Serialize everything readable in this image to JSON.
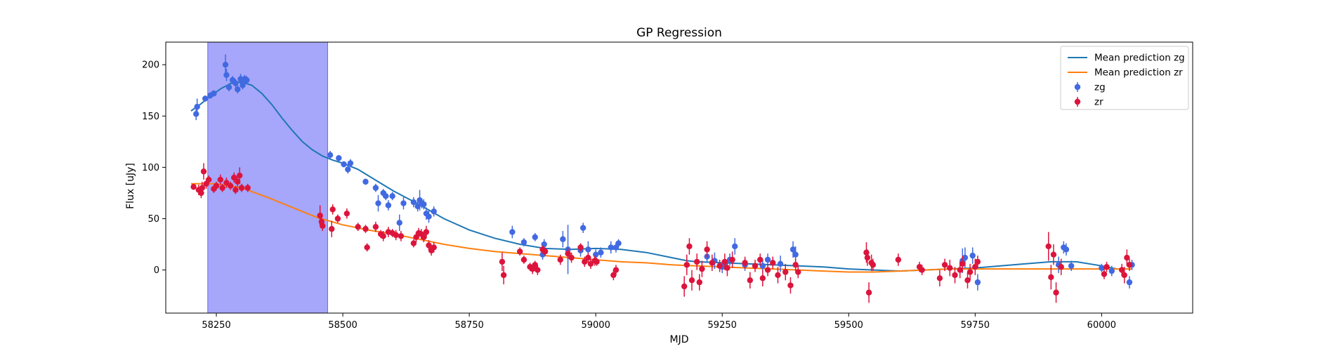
{
  "chart_data": {
    "type": "scatter",
    "title": "GP Regression",
    "xlabel": "MJD",
    "ylabel": "Flux [uJy]",
    "xlim": [
      58150,
      60180
    ],
    "ylim": [
      -42,
      222
    ],
    "xticks": [
      58250,
      58500,
      58750,
      59000,
      59250,
      59500,
      59750,
      60000
    ],
    "yticks": [
      0,
      50,
      100,
      150,
      200
    ],
    "grid": false,
    "legend_position": "top-right",
    "highlight_region": {
      "x_start": 58233,
      "x_end": 58470,
      "color": "#a6a6fa"
    },
    "lines": [
      {
        "name": "Mean prediction zg",
        "color": "#1f77b4",
        "x": [
          58200,
          58220,
          58240,
          58260,
          58280,
          58300,
          58320,
          58340,
          58360,
          58380,
          58400,
          58420,
          58440,
          58460,
          58480,
          58500,
          58530,
          58560,
          58600,
          58650,
          58700,
          58750,
          58800,
          58850,
          58900,
          58950,
          59000,
          59050,
          59100,
          59150,
          59180,
          59200,
          59250,
          59300,
          59350,
          59400,
          59450,
          59500,
          59550,
          59600,
          59650,
          59700,
          59750,
          59800,
          59850,
          59900,
          59950,
          60000,
          60030
        ],
        "y": [
          155,
          162,
          170,
          177,
          182,
          183,
          180,
          172,
          161,
          148,
          136,
          125,
          117,
          111,
          107,
          104,
          98,
          89,
          77,
          64,
          50,
          39,
          31,
          25,
          21,
          20,
          21,
          20,
          17,
          12,
          9,
          8,
          7,
          6,
          5,
          4,
          3,
          1,
          0,
          -1,
          0,
          1,
          2,
          4,
          6,
          8,
          8,
          4,
          1
        ]
      },
      {
        "name": "Mean prediction zr",
        "color": "#ff7f0e",
        "x": [
          58200,
          58250,
          58300,
          58350,
          58400,
          58450,
          58500,
          58550,
          58600,
          58650,
          58700,
          58750,
          58800,
          58850,
          58900,
          58950,
          59000,
          59050,
          59100,
          59150,
          59200,
          59250,
          59300,
          59350,
          59400,
          59450,
          59500,
          59550,
          59600,
          59650,
          59700,
          59750,
          59800,
          59850,
          59900,
          59950,
          60000,
          60060
        ],
        "y": [
          84,
          84,
          80,
          71,
          61,
          51,
          44,
          39,
          35,
          30,
          25,
          21,
          18,
          16,
          14,
          12,
          10,
          8,
          7,
          5,
          4,
          3,
          2,
          1,
          0,
          -1,
          -2,
          -2,
          -1,
          0,
          1,
          1,
          1,
          1,
          1,
          1,
          1,
          1
        ]
      }
    ],
    "series": [
      {
        "name": "zg",
        "color": "#4169e1",
        "x": [
          58210,
          58212,
          58228,
          58238,
          58245,
          58268,
          58270,
          58275,
          58282,
          58288,
          58292,
          58298,
          58302,
          58306,
          58310,
          58475,
          58492,
          58502,
          58510,
          58515,
          58545,
          58565,
          58570,
          58580,
          58585,
          58590,
          58598,
          58612,
          58620,
          58640,
          58648,
          58652,
          58656,
          58660,
          58665,
          58670,
          58680,
          58835,
          58858,
          58880,
          58895,
          58898,
          58935,
          58945,
          58970,
          58975,
          58985,
          59000,
          59010,
          59030,
          59040,
          59045,
          59220,
          59235,
          59250,
          59255,
          59265,
          59275,
          59295,
          59330,
          59340,
          59365,
          59390,
          59395,
          59725,
          59730,
          59745,
          59755,
          59915,
          59925,
          59930,
          59940,
          60000,
          60020,
          60055,
          60060
        ],
        "y": [
          152,
          159,
          167,
          170,
          172,
          200,
          190,
          178,
          185,
          182,
          176,
          186,
          180,
          186,
          185,
          112,
          109,
          103,
          98,
          104,
          86,
          80,
          65,
          75,
          72,
          63,
          72,
          46,
          65,
          66,
          62,
          68,
          65,
          64,
          55,
          52,
          57,
          37,
          27,
          32,
          15,
          25,
          30,
          20,
          19,
          41,
          20,
          15,
          17,
          22,
          22,
          26,
          13,
          9,
          3,
          6,
          10,
          23,
          5,
          4,
          10,
          6,
          20,
          15,
          9,
          12,
          14,
          -12,
          5,
          22,
          20,
          4,
          2,
          -1,
          -12,
          5
        ],
        "err": [
          6,
          8,
          3,
          3,
          3,
          10,
          6,
          4,
          4,
          4,
          4,
          5,
          4,
          4,
          4,
          4,
          3,
          3,
          4,
          4,
          3,
          4,
          8,
          4,
          4,
          5,
          4,
          8,
          6,
          5,
          5,
          10,
          5,
          5,
          6,
          6,
          5,
          6,
          4,
          4,
          5,
          5,
          8,
          24,
          6,
          5,
          8,
          5,
          5,
          6,
          5,
          4,
          6,
          8,
          6,
          5,
          6,
          8,
          6,
          6,
          6,
          8,
          8,
          8,
          12,
          10,
          8,
          8,
          8,
          6,
          6,
          5,
          4,
          5,
          6,
          5
        ]
      },
      {
        "name": "zr",
        "color": "#dc143c",
        "x": [
          58205,
          58215,
          58220,
          58222,
          58225,
          58230,
          58235,
          58245,
          58250,
          58258,
          58262,
          58270,
          58278,
          58285,
          58288,
          58292,
          58296,
          58300,
          58312,
          58455,
          58458,
          58460,
          58478,
          58480,
          58490,
          58508,
          58530,
          58545,
          58548,
          58565,
          58575,
          58580,
          58590,
          58598,
          58605,
          58615,
          58640,
          58645,
          58650,
          58655,
          58660,
          58665,
          58670,
          58675,
          58680,
          58815,
          58818,
          58850,
          58858,
          58870,
          58875,
          58880,
          58885,
          58895,
          58900,
          58930,
          58945,
          58952,
          58970,
          58978,
          58985,
          58990,
          58998,
          59002,
          59035,
          59040,
          59175,
          59180,
          59185,
          59190,
          59200,
          59205,
          59210,
          59220,
          59230,
          59245,
          59255,
          59260,
          59270,
          59295,
          59305,
          59315,
          59325,
          59330,
          59340,
          59350,
          59360,
          59375,
          59385,
          59395,
          59400,
          59535,
          59537,
          59540,
          59545,
          59548,
          59598,
          59640,
          59645,
          59680,
          59690,
          59700,
          59710,
          59720,
          59725,
          59735,
          59740,
          59750,
          59755,
          59895,
          59900,
          59905,
          59910,
          59920,
          60005,
          60010,
          60040,
          60045,
          60050,
          60055
        ],
        "y": [
          81,
          78,
          75,
          80,
          96,
          84,
          88,
          79,
          82,
          88,
          80,
          85,
          82,
          90,
          78,
          86,
          92,
          80,
          80,
          53,
          47,
          43,
          40,
          59,
          50,
          55,
          42,
          40,
          22,
          42,
          35,
          33,
          37,
          36,
          34,
          33,
          26,
          32,
          36,
          35,
          32,
          37,
          24,
          19,
          22,
          8,
          -5,
          18,
          10,
          3,
          1,
          5,
          0,
          20,
          18,
          10,
          16,
          12,
          22,
          8,
          12,
          6,
          9,
          8,
          -5,
          0,
          -16,
          5,
          23,
          -10,
          8,
          -12,
          1,
          20,
          7,
          4,
          8,
          2,
          10,
          7,
          -10,
          4,
          10,
          -8,
          0,
          7,
          -5,
          -2,
          -15,
          5,
          -2,
          17,
          12,
          -22,
          7,
          5,
          10,
          3,
          0,
          -8,
          5,
          2,
          -5,
          0,
          6,
          -10,
          -2,
          3,
          8,
          23,
          -7,
          15,
          -22,
          3,
          -4,
          3,
          0,
          -5,
          12,
          5
        ],
        "err": [
          3,
          5,
          5,
          6,
          8,
          5,
          4,
          4,
          4,
          5,
          4,
          5,
          4,
          5,
          4,
          5,
          8,
          4,
          4,
          10,
          5,
          5,
          8,
          5,
          4,
          5,
          4,
          4,
          4,
          5,
          4,
          5,
          5,
          4,
          5,
          5,
          4,
          5,
          5,
          5,
          5,
          6,
          5,
          5,
          5,
          9,
          9,
          4,
          4,
          4,
          5,
          4,
          5,
          4,
          4,
          5,
          5,
          5,
          4,
          5,
          5,
          5,
          5,
          4,
          5,
          5,
          10,
          10,
          8,
          10,
          8,
          8,
          8,
          8,
          8,
          6,
          8,
          8,
          8,
          6,
          8,
          6,
          6,
          8,
          6,
          6,
          8,
          8,
          8,
          6,
          6,
          10,
          8,
          10,
          8,
          6,
          6,
          5,
          5,
          8,
          6,
          8,
          8,
          8,
          8,
          8,
          8,
          8,
          6,
          14,
          12,
          10,
          10,
          8,
          5,
          5,
          6,
          8,
          8,
          6
        ]
      }
    ]
  }
}
